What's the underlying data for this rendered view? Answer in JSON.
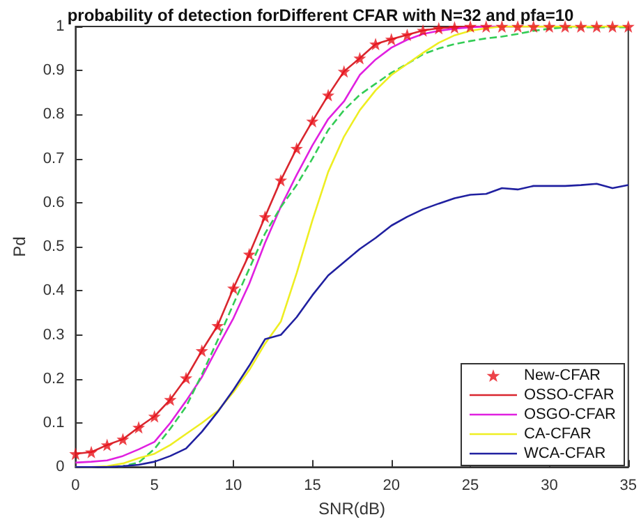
{
  "chart_data": {
    "type": "line",
    "title": "probability of detection forDifferent CFAR with N=32 and pfa=10",
    "xlabel": "SNR(dB)",
    "ylabel": "Pd",
    "x": [
      0,
      1,
      2,
      3,
      4,
      5,
      6,
      7,
      8,
      9,
      10,
      11,
      12,
      13,
      14,
      15,
      16,
      17,
      18,
      19,
      20,
      21,
      22,
      23,
      24,
      25,
      26,
      27,
      28,
      29,
      30,
      31,
      32,
      33,
      34,
      35
    ],
    "series": [
      {
        "name": "New-CFAR",
        "type": "scatter",
        "marker": "star",
        "color": "#e8141c",
        "values": [
          0.03,
          0.034,
          0.05,
          0.063,
          0.09,
          0.115,
          0.153,
          0.202,
          0.264,
          0.321,
          0.406,
          0.483,
          0.568,
          0.651,
          0.723,
          0.785,
          0.844,
          0.898,
          0.928,
          0.96,
          0.971,
          0.981,
          0.991,
          0.996,
          0.998,
          1,
          1,
          1,
          1,
          1,
          1,
          1,
          1,
          1,
          1,
          1
        ]
      },
      {
        "name": "OSSO-CFAR",
        "color": "#d9262e",
        "values": [
          0.03,
          0.034,
          0.05,
          0.063,
          0.09,
          0.115,
          0.153,
          0.202,
          0.264,
          0.321,
          0.406,
          0.483,
          0.568,
          0.651,
          0.723,
          0.785,
          0.844,
          0.898,
          0.928,
          0.96,
          0.971,
          0.981,
          0.991,
          0.996,
          0.998,
          1,
          1,
          1,
          1,
          1,
          1,
          1,
          1,
          1,
          1,
          1
        ]
      },
      {
        "name": "OSGO-CFAR",
        "color": "#e020e0",
        "values": [
          0.01,
          0.012,
          0.015,
          0.025,
          0.04,
          0.057,
          0.1,
          0.15,
          0.204,
          0.272,
          0.338,
          0.416,
          0.509,
          0.591,
          0.663,
          0.73,
          0.79,
          0.83,
          0.89,
          0.925,
          0.952,
          0.97,
          0.983,
          0.99,
          0.995,
          0.998,
          1,
          1,
          1,
          null,
          null,
          null,
          null,
          null,
          null,
          null
        ]
      },
      {
        "line_style": "dashed",
        "color": "#33cc55",
        "values": [
          null,
          null,
          0,
          0.002,
          0.01,
          0.041,
          0.087,
          0.137,
          0.21,
          0.288,
          0.37,
          0.45,
          0.53,
          0.59,
          0.64,
          0.7,
          0.765,
          0.81,
          0.845,
          0.87,
          0.895,
          0.915,
          0.937,
          0.95,
          0.96,
          0.967,
          0.973,
          0.977,
          0.983,
          0.99,
          0.995,
          0.998,
          0.998,
          0.998,
          0.998,
          0.998
        ]
      },
      {
        "name": "CA-CFAR",
        "color": "#eeee22",
        "values": [
          0,
          0,
          0.002,
          0.008,
          0.02,
          0.03,
          0.05,
          0.075,
          0.1,
          0.127,
          0.17,
          0.22,
          0.28,
          0.33,
          0.44,
          0.56,
          0.67,
          0.75,
          0.81,
          0.855,
          0.89,
          0.915,
          0.94,
          0.963,
          0.98,
          0.99,
          0.996,
          1,
          1,
          1,
          1,
          1,
          1,
          1,
          1,
          1
        ]
      },
      {
        "name": "WCA-CFAR",
        "color": "#2020a0",
        "values": [
          0,
          0,
          0,
          0.002,
          0.005,
          0.012,
          0.025,
          0.042,
          0.08,
          0.125,
          0.175,
          0.23,
          0.29,
          0.3,
          0.34,
          0.39,
          0.435,
          0.465,
          0.495,
          0.52,
          0.548,
          0.568,
          0.585,
          0.598,
          0.61,
          0.618,
          0.62,
          0.633,
          0.63,
          0.638,
          0.638,
          0.638,
          0.64,
          0.643,
          0.633,
          0.64
        ]
      }
    ],
    "xlim": [
      0,
      35
    ],
    "xticks": [
      0,
      5,
      10,
      15,
      20,
      25,
      30,
      35
    ],
    "ylim": [
      0,
      1
    ],
    "yticks": [
      0,
      0.1,
      0.2,
      0.3,
      0.4,
      0.5,
      0.6,
      0.7,
      0.8,
      0.9,
      1
    ],
    "grid": false,
    "legend": "bottom right"
  }
}
